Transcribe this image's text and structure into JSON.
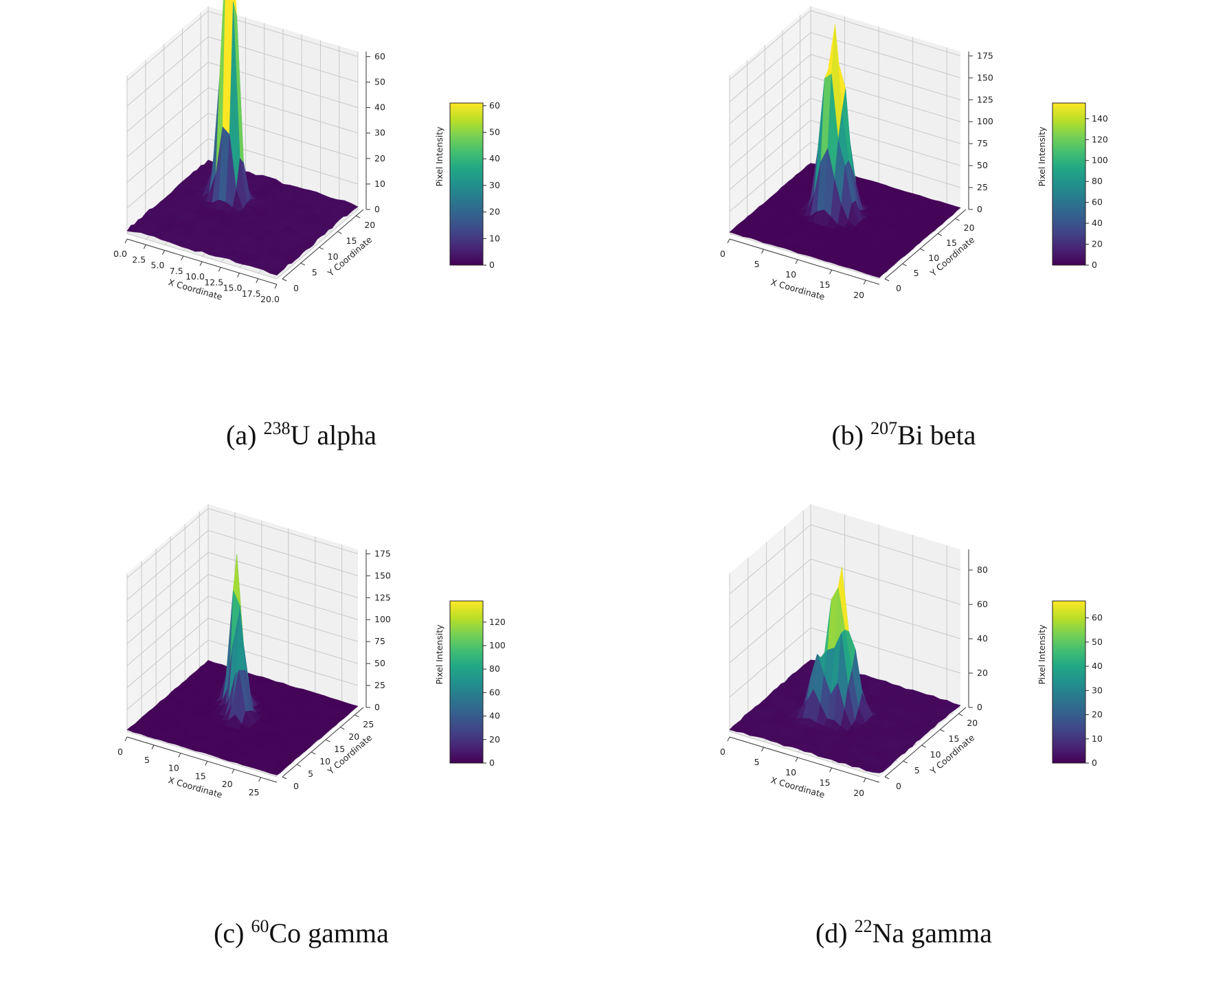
{
  "chart_data": [
    {
      "panel": "a",
      "type": "surface3d",
      "caption": {
        "prefix": "(a) ",
        "isotope_mass": "238",
        "element": "U",
        "radiation": " alpha"
      },
      "xlabel": "X Coordinate",
      "ylabel": "Y Coordinate",
      "colorbar_label": "Pixel Intensity",
      "colormap": "viridis",
      "xlim": [
        0,
        20
      ],
      "ylim": [
        0,
        22
      ],
      "zlim": [
        0,
        62
      ],
      "xticks": [
        "0.0",
        "2.5",
        "5.0",
        "7.5",
        "10.0",
        "12.5",
        "15.0",
        "17.5",
        "20.0"
      ],
      "xtick_values": [
        0,
        2.5,
        5,
        7.5,
        10,
        12.5,
        15,
        17.5,
        20
      ],
      "yticks": [
        "0",
        "5",
        "10",
        "15",
        "20"
      ],
      "ytick_values": [
        0,
        5,
        10,
        15,
        20
      ],
      "zticks": [
        "0",
        "10",
        "20",
        "30",
        "40",
        "50",
        "60"
      ],
      "ztick_values": [
        0,
        10,
        20,
        30,
        40,
        50,
        60
      ],
      "colorbar_range": [
        0,
        61
      ],
      "colorbar_ticks": [
        "0",
        "10",
        "20",
        "30",
        "40",
        "50",
        "60"
      ],
      "colorbar_tick_values": [
        0,
        10,
        20,
        30,
        40,
        50,
        60
      ],
      "peaks": [
        {
          "x": 6.5,
          "y": 14.5,
          "z": 60
        },
        {
          "x": 6.0,
          "y": 15.0,
          "z": 52
        },
        {
          "x": 7.0,
          "y": 14.0,
          "z": 40
        }
      ],
      "background_level": 1
    },
    {
      "panel": "b",
      "type": "surface3d",
      "caption": {
        "prefix": "(b) ",
        "isotope_mass": "207",
        "element": "Bi",
        "radiation": " beta"
      },
      "xlabel": "X Coordinate",
      "ylabel": "Y Coordinate",
      "colorbar_label": "Pixel Intensity",
      "colormap": "viridis",
      "xlim": [
        0,
        22
      ],
      "ylim": [
        0,
        23
      ],
      "zlim": [
        0,
        180
      ],
      "xticks": [
        "0",
        "5",
        "10",
        "15",
        "20"
      ],
      "xtick_values": [
        0,
        5,
        10,
        15,
        20
      ],
      "yticks": [
        "0",
        "5",
        "10",
        "15",
        "20"
      ],
      "ytick_values": [
        0,
        5,
        10,
        15,
        20
      ],
      "zticks": [
        "0",
        "25",
        "50",
        "75",
        "100",
        "125",
        "150",
        "175"
      ],
      "ztick_values": [
        0,
        25,
        50,
        75,
        100,
        125,
        150,
        175
      ],
      "colorbar_range": [
        0,
        155
      ],
      "colorbar_ticks": [
        "0",
        "20",
        "40",
        "60",
        "80",
        "100",
        "120",
        "140"
      ],
      "colorbar_tick_values": [
        0,
        20,
        40,
        60,
        80,
        100,
        120,
        140
      ],
      "peaks": [
        {
          "x": 9,
          "y": 13,
          "z": 150
        },
        {
          "x": 8,
          "y": 12,
          "z": 120
        },
        {
          "x": 10,
          "y": 14,
          "z": 95
        },
        {
          "x": 9,
          "y": 11,
          "z": 80
        },
        {
          "x": 11,
          "y": 12,
          "z": 60
        }
      ],
      "background_level": 1
    },
    {
      "panel": "c",
      "type": "surface3d",
      "caption": {
        "prefix": "(c) ",
        "isotope_mass": "60",
        "element": "Co",
        "radiation": " gamma"
      },
      "xlabel": "X Coordinate",
      "ylabel": "Y Coordinate",
      "colorbar_label": "Pixel Intensity",
      "colormap": "viridis",
      "xlim": [
        0,
        28
      ],
      "ylim": [
        0,
        28
      ],
      "zlim": [
        0,
        180
      ],
      "xticks": [
        "0",
        "5",
        "10",
        "15",
        "20",
        "25"
      ],
      "xtick_values": [
        0,
        5,
        10,
        15,
        20,
        25
      ],
      "yticks": [
        "0",
        "5",
        "10",
        "15",
        "20",
        "25"
      ],
      "ytick_values": [
        0,
        5,
        10,
        15,
        20,
        25
      ],
      "zticks": [
        "0",
        "25",
        "50",
        "75",
        "100",
        "125",
        "150",
        "175"
      ],
      "ztick_values": [
        0,
        25,
        50,
        75,
        100,
        125,
        150,
        175
      ],
      "colorbar_range": [
        0,
        138
      ],
      "colorbar_ticks": [
        "0",
        "20",
        "40",
        "60",
        "80",
        "100",
        "120"
      ],
      "colorbar_tick_values": [
        0,
        20,
        40,
        60,
        80,
        100,
        120
      ],
      "peaks": [
        {
          "x": 10,
          "y": 19,
          "z": 135
        },
        {
          "x": 11,
          "y": 18,
          "z": 110
        },
        {
          "x": 12,
          "y": 16,
          "z": 95
        },
        {
          "x": 13,
          "y": 15,
          "z": 80
        },
        {
          "x": 14,
          "y": 13,
          "z": 60
        }
      ],
      "background_level": 1
    },
    {
      "panel": "d",
      "type": "surface3d",
      "caption": {
        "prefix": "(d) ",
        "isotope_mass": "22",
        "element": "Na",
        "radiation": " gamma"
      },
      "xlabel": "X Coordinate",
      "ylabel": "Y Coordinate",
      "colorbar_label": "Pixel Intensity",
      "colormap": "viridis",
      "xlim": [
        0,
        22
      ],
      "ylim": [
        0,
        22
      ],
      "zlim": [
        0,
        92
      ],
      "xticks": [
        "0",
        "5",
        "10",
        "15",
        "20"
      ],
      "xtick_values": [
        0,
        5,
        10,
        15,
        20
      ],
      "yticks": [
        "0",
        "5",
        "10",
        "15",
        "20"
      ],
      "ytick_values": [
        0,
        5,
        10,
        15,
        20
      ],
      "zticks": [
        "0",
        "20",
        "40",
        "60",
        "80"
      ],
      "ztick_values": [
        0,
        20,
        40,
        60,
        80
      ],
      "colorbar_range": [
        0,
        67
      ],
      "colorbar_ticks": [
        "0",
        "10",
        "20",
        "30",
        "40",
        "50",
        "60"
      ],
      "colorbar_tick_values": [
        0,
        10,
        20,
        30,
        40,
        50,
        60
      ],
      "peaks": [
        {
          "x": 10,
          "y": 12,
          "z": 67
        },
        {
          "x": 9,
          "y": 11,
          "z": 50
        },
        {
          "x": 11,
          "y": 10,
          "z": 45
        },
        {
          "x": 8,
          "y": 9,
          "z": 35
        },
        {
          "x": 12,
          "y": 12,
          "z": 35
        }
      ],
      "background_level": 1
    }
  ]
}
